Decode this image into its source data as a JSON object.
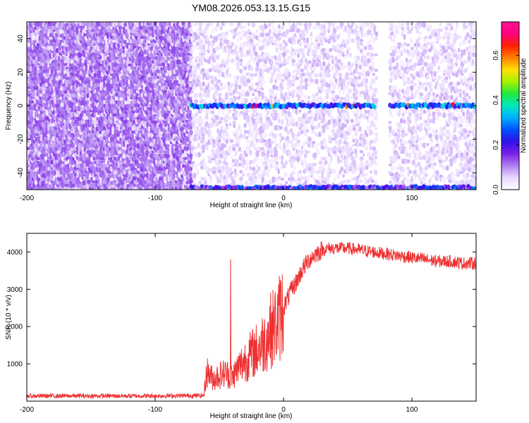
{
  "title": "YM08.2026.053.13.15.G15",
  "chart_data": [
    {
      "type": "heatmap",
      "xlabel": "Height of straight line (km)",
      "ylabel": "Frequency (Hz)",
      "xlim": [
        -200,
        150
      ],
      "ylim": [
        -50,
        50
      ],
      "xticks": [
        -200,
        -100,
        0,
        100
      ],
      "yticks": [
        -40,
        -20,
        0,
        20,
        40
      ],
      "colorbar": {
        "label": "Normalized spectral amplitude",
        "range": [
          0.0,
          0.75
        ],
        "ticks": [
          0.0,
          0.2,
          0.4,
          0.6
        ],
        "colormap": [
          "#ffffff",
          "#e8d8ff",
          "#b080f0",
          "#7a20e8",
          "#3010e8",
          "#0050ff",
          "#00b0ff",
          "#00e8c0",
          "#20e840",
          "#a8f000",
          "#ffe000",
          "#ff8000",
          "#ff2000",
          "#ff0080",
          "#ff1493"
        ]
      },
      "features": [
        {
          "name": "noise region",
          "x_range": [
            -200,
            -72
          ],
          "level": 0.12
        },
        {
          "name": "signal line",
          "frequency": 0,
          "x_range": [
            -72,
            150
          ],
          "level": 0.3
        },
        {
          "name": "low-frequency edge band",
          "frequency": -48,
          "x_range": [
            -72,
            150
          ],
          "level": 0.25
        },
        {
          "name": "data gap",
          "x_range": [
            72,
            82
          ]
        }
      ]
    },
    {
      "type": "line",
      "xlabel": "Height of straight line (km)",
      "ylabel": "SNR (10 * v/v)",
      "xlim": [
        -200,
        150
      ],
      "ylim": [
        0,
        4500
      ],
      "xticks": [
        -200,
        -100,
        0,
        100
      ],
      "yticks": [
        1000,
        2000,
        3000,
        4000
      ],
      "series": [
        {
          "name": "SNR",
          "color": "#ee3030",
          "x": [
            -200,
            -150,
            -100,
            -62,
            -60,
            -55,
            -50,
            -45,
            -40,
            -35,
            -30,
            -25,
            -20,
            -15,
            -10,
            -5,
            0,
            5,
            10,
            15,
            20,
            25,
            30,
            35,
            40,
            50,
            60,
            70,
            80,
            90,
            100,
            110,
            120,
            130,
            140,
            150
          ],
          "values": [
            140,
            140,
            140,
            150,
            800,
            600,
            700,
            750,
            650,
            900,
            1100,
            1250,
            1400,
            1600,
            1900,
            2100,
            2500,
            2900,
            3200,
            3550,
            3800,
            3950,
            4050,
            4100,
            4100,
            4100,
            4050,
            4000,
            3950,
            3900,
            3850,
            3800,
            3750,
            3750,
            3700,
            3700
          ]
        }
      ]
    }
  ]
}
